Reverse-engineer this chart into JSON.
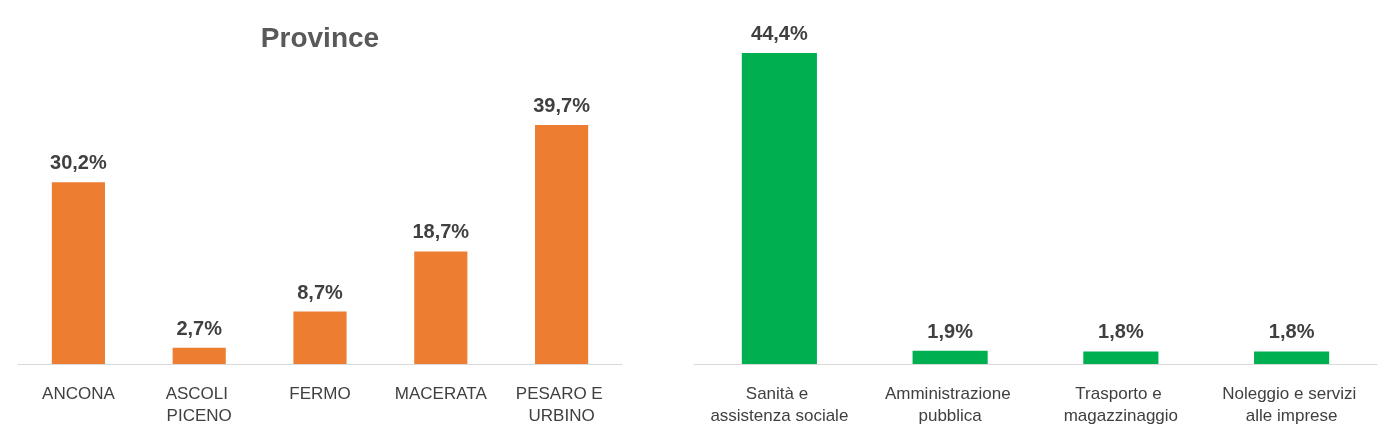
{
  "chart_data": [
    {
      "type": "bar",
      "title": "Province",
      "categories": [
        "ANCONA",
        "ASCOLI PICENO",
        "FERMO",
        "MACERATA",
        "PESARO E URBINO"
      ],
      "values": [
        30.2,
        2.7,
        8.7,
        18.7,
        39.7
      ],
      "color": "#ed7d31",
      "value_labels": [
        "30,2%",
        "2,7%",
        "8,7%",
        "18,7%",
        "39,7%"
      ]
    },
    {
      "type": "bar",
      "categories": [
        "Sanità e assistenza sociale",
        "Amministrazione pubblica",
        "Trasporto e magazzinaggio",
        "Noleggio e servizi alle imprese"
      ],
      "values": [
        44.4,
        1.9,
        1.8,
        1.8
      ],
      "color": "#00b050",
      "value_labels": [
        "44,4%",
        "1,9%",
        "1,8%",
        "1,8%"
      ]
    }
  ]
}
